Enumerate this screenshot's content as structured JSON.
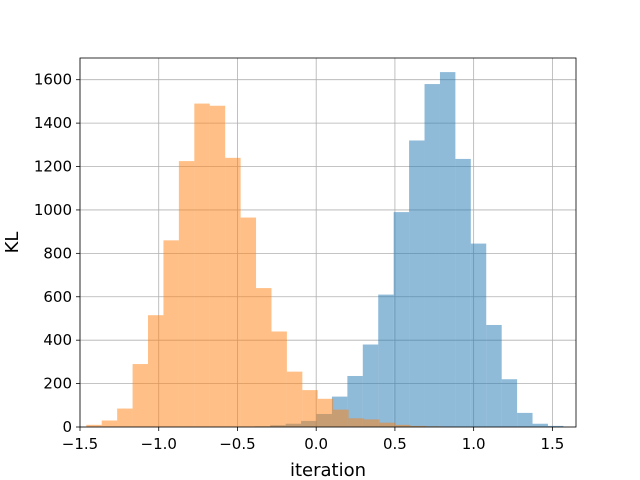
{
  "chart_data": {
    "type": "histogram",
    "xlabel": "iteration",
    "ylabel": "KL",
    "xlim": [
      -1.5,
      1.65
    ],
    "ylim": [
      0,
      1700
    ],
    "grid": true,
    "xticks": [
      -1.5,
      -1.0,
      -0.5,
      0.0,
      0.5,
      1.0,
      1.5
    ],
    "xtick_labels": [
      "−1.5",
      "−1.0",
      "−0.5",
      "0.0",
      "0.5",
      "1.0",
      "1.5"
    ],
    "yticks": [
      0,
      200,
      400,
      600,
      800,
      1000,
      1200,
      1400,
      1600
    ],
    "ytick_labels": [
      "0",
      "200",
      "400",
      "600",
      "800",
      "1000",
      "1200",
      "1400",
      "1600"
    ],
    "series": [
      {
        "color": "#1f77b4",
        "opacity": 0.5,
        "bin_edges": [
          -0.39,
          -0.292,
          -0.194,
          -0.096,
          0.002,
          0.1,
          0.198,
          0.296,
          0.394,
          0.492,
          0.59,
          0.688,
          0.786,
          0.884,
          0.982,
          1.08,
          1.178,
          1.276,
          1.374,
          1.472,
          1.57
        ],
        "counts": [
          3,
          8,
          15,
          28,
          60,
          140,
          235,
          380,
          610,
          990,
          1320,
          1580,
          1635,
          1235,
          845,
          470,
          220,
          65,
          15,
          5
        ]
      },
      {
        "color": "#ff7f0e",
        "opacity": 0.5,
        "bin_edges": [
          -1.46,
          -1.362,
          -1.264,
          -1.166,
          -1.068,
          -0.97,
          -0.872,
          -0.774,
          -0.676,
          -0.578,
          -0.48,
          -0.382,
          -0.284,
          -0.186,
          -0.088,
          0.01,
          0.108,
          0.206,
          0.304,
          0.402,
          0.5,
          0.598,
          0.696,
          0.794,
          0.892
        ],
        "counts": [
          10,
          30,
          85,
          290,
          515,
          860,
          1225,
          1490,
          1480,
          1240,
          965,
          640,
          440,
          255,
          170,
          130,
          80,
          40,
          35,
          20,
          10,
          5,
          3,
          1
        ]
      }
    ]
  }
}
